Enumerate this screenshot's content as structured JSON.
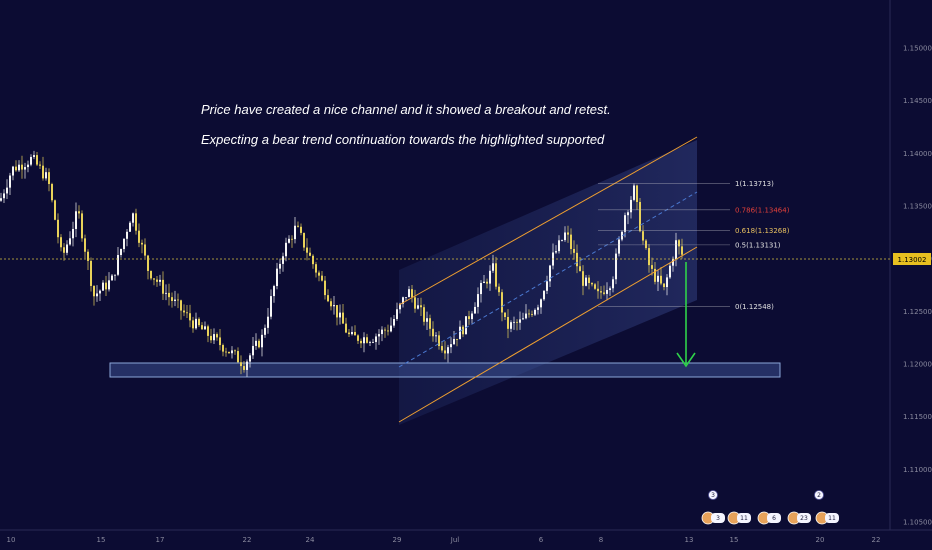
{
  "chart_data": {
    "type": "candlestick",
    "annotations": [
      "Price have created a nice channel and it showed a breakout and retest.",
      "Expecting a bear trend continuation towards the highlighted supported"
    ],
    "y_axis": {
      "ticks": [
        "1.15000",
        "1.14500",
        "1.14000",
        "1.13500",
        "1.13000",
        "1.12500",
        "1.12000",
        "1.11500",
        "1.11000",
        "1.10500"
      ],
      "range": [
        1.1025,
        1.155
      ]
    },
    "x_axis": {
      "ticks": [
        "10",
        "15",
        "17",
        "22",
        "24",
        "29",
        "Jul",
        "6",
        "8",
        "13",
        "15",
        "20",
        "22"
      ]
    },
    "current_price": "1.13002",
    "fib_levels": [
      {
        "label": "1(1.13713)",
        "value": 1.13713,
        "color": "#e0e0e0"
      },
      {
        "label": "0.786(1.13464)",
        "value": 1.13464,
        "color": "#e0403a"
      },
      {
        "label": "0.618(1.13268)",
        "value": 1.13268,
        "color": "#e8c060"
      },
      {
        "label": "0.5(1.13131)",
        "value": 1.13131,
        "color": "#e0e0e0"
      },
      {
        "label": "0(1.12548)",
        "value": 1.12548,
        "color": "#e0e0e0"
      }
    ],
    "support_zone": [
      1.1191,
      1.1205
    ],
    "target_arrow": {
      "from": 1.13002,
      "to": 1.1202
    },
    "events": [
      {
        "top": "3",
        "bottom": "3"
      },
      {
        "top": "",
        "bottom": "11"
      },
      {
        "top": "",
        "bottom": "6"
      },
      {
        "top": "2",
        "bottom": "23"
      },
      {
        "top": "",
        "bottom": "11"
      }
    ],
    "colors": {
      "background": "#0c0c33",
      "candle_up": "#f5f5f5",
      "candle_down": "#e8d25a",
      "channel": "#f0a030",
      "arrow": "#2fd24a",
      "price_line": "#d8c040",
      "support": "#8aa6d8"
    }
  }
}
